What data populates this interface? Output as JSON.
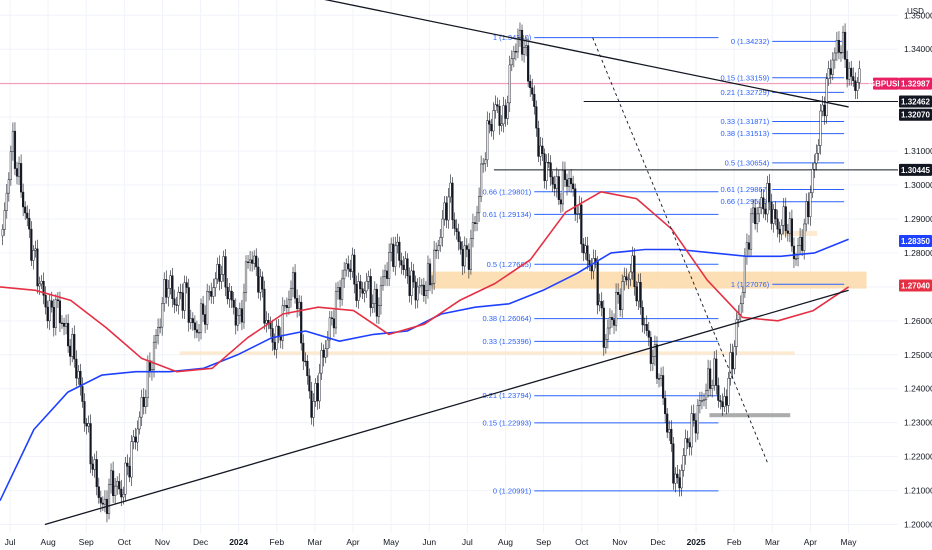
{
  "chart_data": {
    "type": "candlestick",
    "symbol": "GBPUSD",
    "currency_unit": "USD",
    "x_tick_labels": [
      "Jul",
      "Aug",
      "Sep",
      "Oct",
      "Nov",
      "Dec",
      "2024",
      "Feb",
      "Mar",
      "Apr",
      "May",
      "Jun",
      "Jul",
      "Aug",
      "Sep",
      "Oct",
      "Nov",
      "Dec",
      "2025",
      "Feb",
      "Mar",
      "Apr",
      "May"
    ],
    "y_tick_labels": [
      "1.35000",
      "1.34000",
      "1.33000",
      "1.32000",
      "1.31000",
      "1.30000",
      "1.29000",
      "1.28000",
      "1.27000",
      "1.26000",
      "1.25000",
      "1.24000",
      "1.23000",
      "1.22000",
      "1.21000",
      "1.20000"
    ],
    "y_ticks": [
      1.35,
      1.34,
      1.33,
      1.32,
      1.31,
      1.3,
      1.29,
      1.28,
      1.27,
      1.26,
      1.25,
      1.24,
      1.23,
      1.22,
      1.21,
      1.2
    ],
    "ylim": [
      1.1975,
      1.3545
    ],
    "price_path": [
      1.285,
      1.313,
      1.299,
      1.284,
      1.272,
      1.262,
      1.264,
      1.256,
      1.248,
      1.232,
      1.216,
      1.204,
      1.213,
      1.209,
      1.22,
      1.231,
      1.244,
      1.257,
      1.272,
      1.265,
      1.269,
      1.256,
      1.262,
      1.27,
      1.276,
      1.266,
      1.259,
      1.28,
      1.274,
      1.259,
      1.253,
      1.264,
      1.272,
      1.25,
      1.233,
      1.248,
      1.259,
      1.27,
      1.278,
      1.268,
      1.271,
      1.263,
      1.275,
      1.282,
      1.276,
      1.27,
      1.269,
      1.273,
      1.286,
      1.298,
      1.282,
      1.278,
      1.292,
      1.313,
      1.323,
      1.318,
      1.34,
      1.3434,
      1.328,
      1.308,
      1.304,
      1.297,
      1.303,
      1.293,
      1.278,
      1.276,
      1.254,
      1.262,
      1.27,
      1.276,
      1.264,
      1.252,
      1.245,
      1.228,
      1.2099,
      1.224,
      1.231,
      1.239,
      1.245,
      1.233,
      1.248,
      1.266,
      1.289,
      1.293,
      1.296,
      1.287,
      1.29,
      1.278,
      1.288,
      1.305,
      1.323,
      1.337,
      1.3423,
      1.331,
      1.3298
    ],
    "moving_averages": [
      {
        "color": "#1e40ff",
        "values": [
          1.207,
          1.228,
          1.239,
          1.244,
          1.245,
          1.245,
          1.246,
          1.25,
          1.255,
          1.257,
          1.254,
          1.256,
          1.257,
          1.262,
          1.264,
          1.265,
          1.269,
          1.274,
          1.28,
          1.281,
          1.281,
          1.28,
          1.279,
          1.279,
          1.28,
          1.284
        ]
      },
      {
        "color": "#e53044",
        "values": [
          1.27,
          1.269,
          1.266,
          1.258,
          1.249,
          1.245,
          1.246,
          1.255,
          1.262,
          1.264,
          1.263,
          1.256,
          1.259,
          1.266,
          1.271,
          1.278,
          1.292,
          1.298,
          1.296,
          1.287,
          1.272,
          1.261,
          1.26,
          1.263,
          1.27
        ]
      }
    ],
    "trendlines": [
      {
        "color": "#131722",
        "style": "solid",
        "from": [
          0.3,
          1.358
        ],
        "to": [
          0.945,
          1.323
        ]
      },
      {
        "color": "#131722",
        "style": "solid",
        "from": [
          0.05,
          1.2
        ],
        "to": [
          0.945,
          1.269
        ]
      },
      {
        "color": "#131722",
        "style": "dashed",
        "from": [
          0.66,
          1.3434
        ],
        "to": [
          0.855,
          1.218
        ]
      }
    ],
    "zones": [
      {
        "color": "#fdd9a8",
        "from_x": 0.48,
        "to_x": 0.965,
        "ylim": [
          1.2695,
          1.2745
        ]
      },
      {
        "color": "#fde6c8",
        "from_x": 0.2,
        "to_x": 0.885,
        "ylim": [
          1.25,
          1.251
        ]
      },
      {
        "color": "#fde6c8",
        "from_x": 0.87,
        "to_x": 0.91,
        "ylim": [
          1.285,
          1.2865
        ]
      },
      {
        "color": "#9e9e9e",
        "from_x": 0.79,
        "to_x": 0.88,
        "ylim": [
          1.2316,
          1.2328
        ]
      }
    ],
    "horizontal_levels": [
      {
        "price": 1.32462,
        "from_x": 0.65,
        "color": "#131722"
      },
      {
        "price": 1.30445,
        "from_x": 0.55,
        "color": "#131722"
      },
      {
        "price": 1.32987,
        "from_x": 0.0,
        "color": "#f48fb1"
      }
    ],
    "fibonacci_sets": [
      {
        "x_from": 0.595,
        "x_to": 0.8,
        "levels": [
          {
            "label": "1 (1.34340)",
            "price": 1.3434
          },
          {
            "label": "0.66 (1.29801)",
            "price": 1.29801
          },
          {
            "label": "0.61 (1.29134)",
            "price": 1.29134
          },
          {
            "label": "0.5 (1.27665)",
            "price": 1.27665
          },
          {
            "label": "0.38 (1.26064)",
            "price": 1.26064
          },
          {
            "label": "0.33 (1.25396)",
            "price": 1.25396
          },
          {
            "label": "0.21 (1.23794)",
            "price": 1.23794
          },
          {
            "label": "0.15 (1.22993)",
            "price": 1.22993
          },
          {
            "label": "0 (1.20991)",
            "price": 1.20991
          }
        ]
      },
      {
        "x_from": 0.86,
        "x_to": 0.94,
        "levels": [
          {
            "label": "0 (1.34232)",
            "price": 1.34232
          },
          {
            "label": "0.15 (1.33159)",
            "price": 1.33159
          },
          {
            "label": "0.21 (1.32729)",
            "price": 1.32729
          },
          {
            "label": "0.33 (1.31871)",
            "price": 1.31871
          },
          {
            "label": "0.38 (1.31513)",
            "price": 1.31513
          },
          {
            "label": "0.5 (1.30654)",
            "price": 1.30654
          },
          {
            "label": "0.61 (1.29867)",
            "price": 1.29867
          },
          {
            "label": "0.66 (1.29509)",
            "price": 1.29509
          },
          {
            "label": "1 (1.27076)",
            "price": 1.27076
          }
        ]
      }
    ],
    "price_tags": [
      {
        "text": "GBPUSD",
        "price": 1.32987,
        "color": "#e91e63",
        "style": "pair"
      },
      {
        "text": "1.32987",
        "price": 1.32987,
        "color": "#e91e63"
      },
      {
        "text": "1.32462",
        "price": 1.32462,
        "color": "#131722"
      },
      {
        "text": "1.32070",
        "price": 1.3207,
        "color": "#131722"
      },
      {
        "text": "1.30445",
        "price": 1.30445,
        "color": "#131722"
      },
      {
        "text": "1.28350",
        "price": 1.2835,
        "color": "#1e40ff"
      },
      {
        "text": "1.27040",
        "price": 1.2704,
        "color": "#e53044"
      }
    ],
    "colors": {
      "up": "#131722",
      "down": "#131722",
      "grid": "#f0f3fa"
    }
  }
}
